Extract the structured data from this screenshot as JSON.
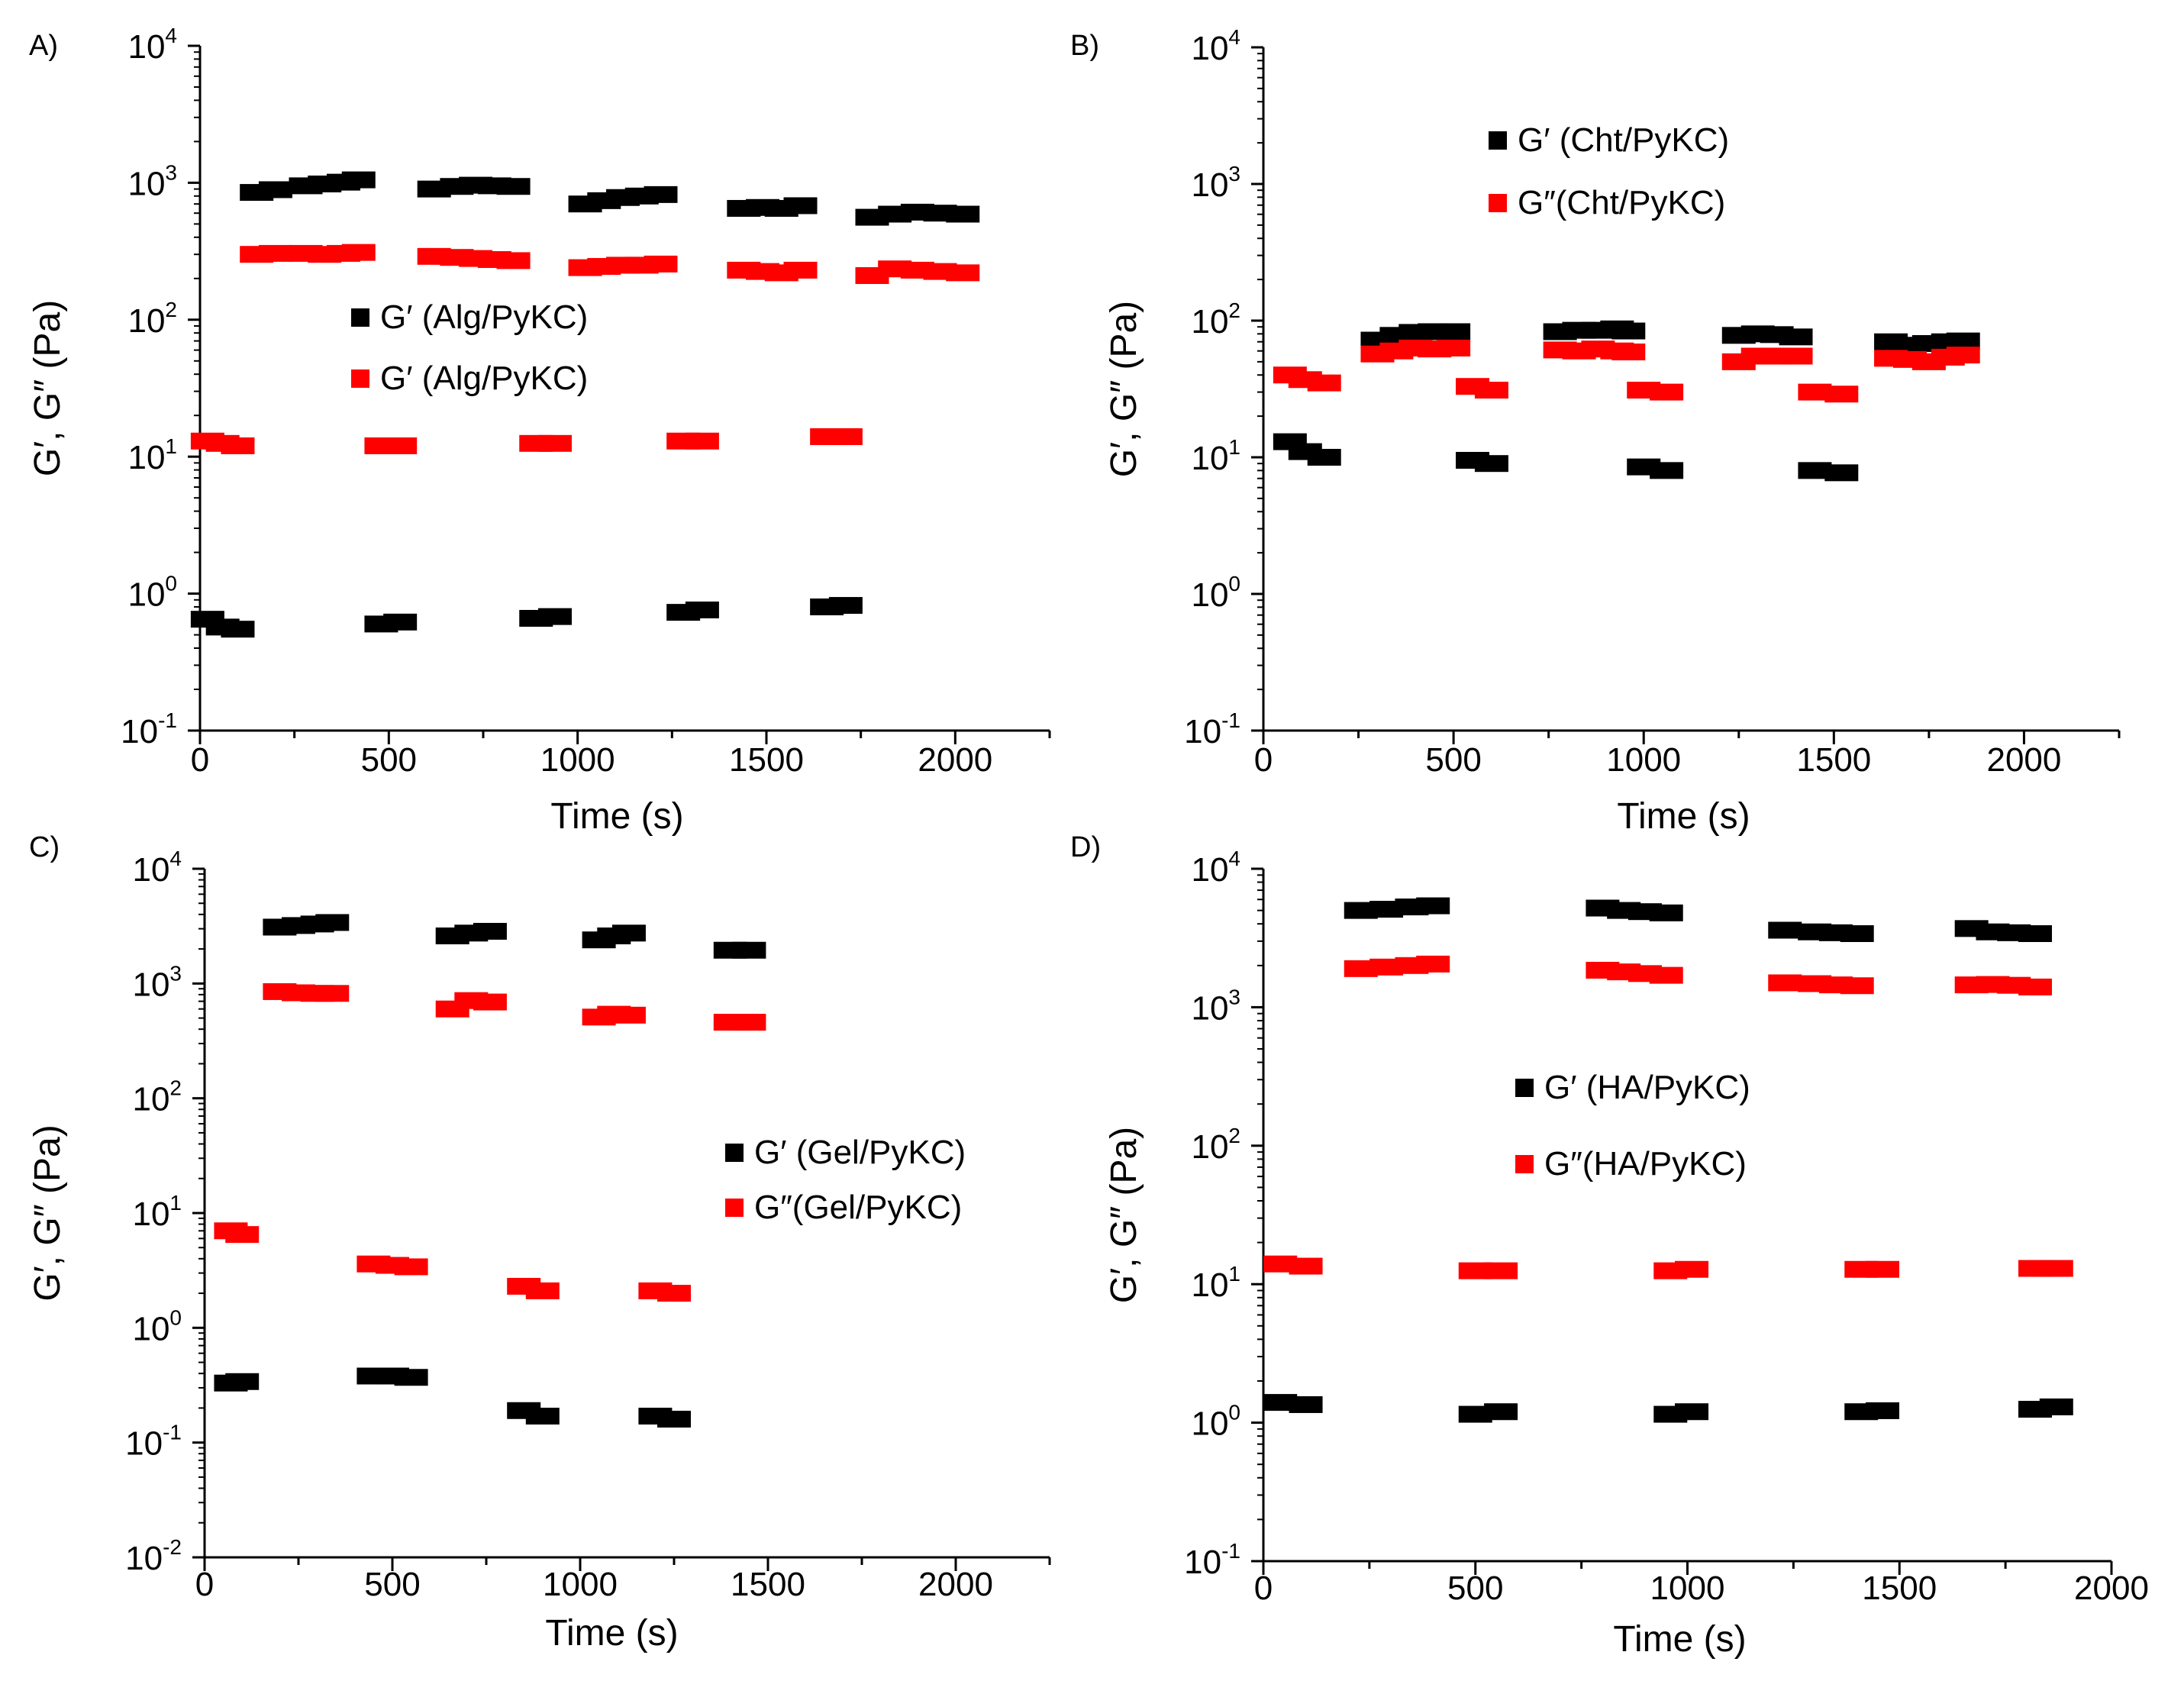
{
  "chart_data": [
    {
      "type": "scatter",
      "panel_label": "A)",
      "xlabel": "Time (s)",
      "ylabel": "G′, G″ (Pa)",
      "xlim": [
        0,
        2250
      ],
      "ylim_log10": [
        -1,
        4
      ],
      "x_ticks": [
        0,
        500,
        1000,
        1500,
        2000
      ],
      "x_tick_labels": [
        "0",
        "500",
        "1000",
        "1500",
        "2000"
      ],
      "y_tick_exponents": [
        "-1",
        "0",
        "1",
        "2",
        "3",
        "4"
      ],
      "legend": {
        "placement": "center-left",
        "entries": [
          "G′ (Alg/PyKC)",
          "G′ (Alg/PyKC)"
        ]
      },
      "series": [
        {
          "name": "G′ (Alg/PyKC) – high",
          "color": "#000000",
          "points": [
            [
              150,
              850
            ],
            [
              200,
              890
            ],
            [
              280,
              950
            ],
            [
              330,
              980
            ],
            [
              380,
              1010
            ],
            [
              420,
              1050
            ],
            [
              620,
              900
            ],
            [
              680,
              940
            ],
            [
              730,
              960
            ],
            [
              780,
              950
            ],
            [
              830,
              940
            ],
            [
              1020,
              700
            ],
            [
              1070,
              740
            ],
            [
              1120,
              780
            ],
            [
              1170,
              800
            ],
            [
              1220,
              820
            ],
            [
              1440,
              650
            ],
            [
              1490,
              660
            ],
            [
              1540,
              650
            ],
            [
              1590,
              680
            ],
            [
              1780,
              560
            ],
            [
              1840,
              590
            ],
            [
              1900,
              610
            ],
            [
              1960,
              600
            ],
            [
              2020,
              590
            ]
          ]
        },
        {
          "name": "G′ (Alg/PyKC) – high",
          "color": "#ff0000",
          "points": [
            [
              150,
              300
            ],
            [
              200,
              305
            ],
            [
              280,
              305
            ],
            [
              330,
              300
            ],
            [
              380,
              305
            ],
            [
              420,
              310
            ],
            [
              620,
              290
            ],
            [
              680,
              285
            ],
            [
              730,
              280
            ],
            [
              780,
              275
            ],
            [
              830,
              270
            ],
            [
              1020,
              240
            ],
            [
              1070,
              245
            ],
            [
              1120,
              250
            ],
            [
              1170,
              250
            ],
            [
              1220,
              255
            ],
            [
              1440,
              230
            ],
            [
              1490,
              225
            ],
            [
              1540,
              220
            ],
            [
              1590,
              230
            ],
            [
              1780,
              210
            ],
            [
              1840,
              235
            ],
            [
              1900,
              230
            ],
            [
              1960,
              225
            ],
            [
              2020,
              220
            ]
          ]
        },
        {
          "name": "G′ (Alg/PyKC) – low",
          "color": "#ff0000",
          "points": [
            [
              20,
              13
            ],
            [
              60,
              12.5
            ],
            [
              100,
              12
            ],
            [
              480,
              12
            ],
            [
              530,
              12
            ],
            [
              890,
              12.5
            ],
            [
              940,
              12.5
            ],
            [
              1280,
              13
            ],
            [
              1330,
              13
            ],
            [
              1660,
              14
            ],
            [
              1710,
              14
            ]
          ]
        },
        {
          "name": "G′ (Alg/PyKC) – low",
          "color": "#000000",
          "points": [
            [
              20,
              0.65
            ],
            [
              60,
              0.57
            ],
            [
              100,
              0.55
            ],
            [
              480,
              0.6
            ],
            [
              530,
              0.62
            ],
            [
              890,
              0.66
            ],
            [
              940,
              0.68
            ],
            [
              1280,
              0.73
            ],
            [
              1330,
              0.76
            ],
            [
              1660,
              0.8
            ],
            [
              1710,
              0.82
            ]
          ]
        }
      ]
    },
    {
      "type": "scatter",
      "panel_label": "B)",
      "xlabel": "Time (s)",
      "ylabel": "G′, G″ (Pa)",
      "xlim": [
        0,
        2250
      ],
      "ylim_log10": [
        -1,
        4
      ],
      "x_ticks": [
        0,
        500,
        1000,
        1500,
        2000
      ],
      "x_tick_labels": [
        "0",
        "500",
        "1000",
        "1500",
        "2000"
      ],
      "y_tick_exponents": [
        "-1",
        "0",
        "1",
        "2",
        "3",
        "4"
      ],
      "legend": {
        "placement": "top-center",
        "entries": [
          "G′ (Cht/PyKC)",
          "G″(Cht/PyKC)"
        ]
      },
      "series": [
        {
          "name": "G′ (Cht/PyKC) – high",
          "color": "#000000",
          "points": [
            [
              300,
              72
            ],
            [
              350,
              78
            ],
            [
              400,
              82
            ],
            [
              450,
              83
            ],
            [
              500,
              83
            ],
            [
              780,
              83
            ],
            [
              830,
              85
            ],
            [
              880,
              85
            ],
            [
              930,
              87
            ],
            [
              960,
              84
            ],
            [
              1250,
              78
            ],
            [
              1300,
              80
            ],
            [
              1350,
              79
            ],
            [
              1400,
              76
            ],
            [
              1650,
              70
            ],
            [
              1700,
              66
            ],
            [
              1750,
              68
            ],
            [
              1800,
              70
            ],
            [
              1840,
              71
            ]
          ]
        },
        {
          "name": "G″(Cht/PyKC) – high",
          "color": "#ff0000",
          "points": [
            [
              300,
              57
            ],
            [
              350,
              60
            ],
            [
              400,
              63
            ],
            [
              450,
              62
            ],
            [
              500,
              63
            ],
            [
              780,
              61
            ],
            [
              830,
              60
            ],
            [
              880,
              62
            ],
            [
              930,
              60
            ],
            [
              960,
              59
            ],
            [
              1250,
              50
            ],
            [
              1300,
              55
            ],
            [
              1350,
              55
            ],
            [
              1400,
              55
            ],
            [
              1650,
              53
            ],
            [
              1700,
              52
            ],
            [
              1750,
              50
            ],
            [
              1800,
              54
            ],
            [
              1840,
              56
            ]
          ]
        },
        {
          "name": "G″(Cht/PyKC) – low",
          "color": "#ff0000",
          "points": [
            [
              70,
              40
            ],
            [
              110,
              37
            ],
            [
              160,
              35
            ],
            [
              550,
              33
            ],
            [
              600,
              31
            ],
            [
              1000,
              31
            ],
            [
              1060,
              30
            ],
            [
              1450,
              30
            ],
            [
              1520,
              29
            ]
          ]
        },
        {
          "name": "G′ (Cht/PyKC) – low",
          "color": "#000000",
          "points": [
            [
              70,
              13
            ],
            [
              110,
              11
            ],
            [
              160,
              10
            ],
            [
              550,
              9.5
            ],
            [
              600,
              9
            ],
            [
              1000,
              8.5
            ],
            [
              1060,
              8
            ],
            [
              1450,
              8
            ],
            [
              1520,
              7.7
            ]
          ]
        }
      ]
    },
    {
      "type": "scatter",
      "panel_label": "C)",
      "xlabel": "Time (s)",
      "ylabel": "G′, G″ (Pa)",
      "xlim": [
        0,
        2250
      ],
      "ylim_log10": [
        -2,
        4
      ],
      "x_ticks": [
        0,
        500,
        1000,
        1500,
        2000
      ],
      "x_tick_labels": [
        "0",
        "500",
        "1000",
        "1500",
        "2000"
      ],
      "y_tick_exponents": [
        "-2",
        "-1",
        "0",
        "1",
        "2",
        "3",
        "4"
      ],
      "legend": {
        "placement": "center-right",
        "entries": [
          "G′ (Gel/PyKC)",
          "G″(Gel/PyKC)"
        ]
      },
      "series": [
        {
          "name": "G′ (Gel/PyKC) – high",
          "color": "#000000",
          "points": [
            [
              200,
              3100
            ],
            [
              250,
              3200
            ],
            [
              300,
              3300
            ],
            [
              340,
              3400
            ],
            [
              660,
              2600
            ],
            [
              710,
              2750
            ],
            [
              760,
              2850
            ],
            [
              1050,
              2400
            ],
            [
              1090,
              2600
            ],
            [
              1130,
              2750
            ],
            [
              1400,
              1950
            ],
            [
              1450,
              1950
            ]
          ]
        },
        {
          "name": "G″(Gel/PyKC) – high",
          "color": "#ff0000",
          "points": [
            [
              200,
              850
            ],
            [
              250,
              830
            ],
            [
              300,
              820
            ],
            [
              340,
              820
            ],
            [
              660,
              600
            ],
            [
              710,
              710
            ],
            [
              760,
              690
            ],
            [
              1050,
              510
            ],
            [
              1090,
              540
            ],
            [
              1130,
              530
            ],
            [
              1400,
              460
            ],
            [
              1450,
              460
            ]
          ]
        },
        {
          "name": "G″(Gel/PyKC) – low",
          "color": "#ff0000",
          "points": [
            [
              70,
              7
            ],
            [
              100,
              6.5
            ],
            [
              450,
              3.6
            ],
            [
              500,
              3.5
            ],
            [
              550,
              3.4
            ],
            [
              850,
              2.3
            ],
            [
              900,
              2.1
            ],
            [
              1200,
              2.1
            ],
            [
              1250,
              2.0
            ]
          ]
        },
        {
          "name": "G′ (Gel/PyKC) – low",
          "color": "#000000",
          "points": [
            [
              70,
              0.33
            ],
            [
              100,
              0.34
            ],
            [
              450,
              0.38
            ],
            [
              500,
              0.38
            ],
            [
              550,
              0.37
            ],
            [
              850,
              0.19
            ],
            [
              900,
              0.17
            ],
            [
              1200,
              0.17
            ],
            [
              1250,
              0.16
            ]
          ]
        }
      ]
    },
    {
      "type": "scatter",
      "panel_label": "D)",
      "xlabel": "Time (s)",
      "ylabel": "G′, G″ (Pa)",
      "xlim": [
        0,
        2000
      ],
      "ylim_log10": [
        -1,
        4
      ],
      "x_ticks": [
        0,
        500,
        1000,
        1500,
        2000
      ],
      "x_tick_labels": [
        "0",
        "500",
        "1000",
        "1500",
        "2000"
      ],
      "y_tick_exponents": [
        "-1",
        "0",
        "1",
        "2",
        "3",
        "4"
      ],
      "legend": {
        "placement": "center",
        "entries": [
          "G′ (HA/PyKC)",
          "G″(HA/PyKC)"
        ]
      },
      "series": [
        {
          "name": "G′ (HA/PyKC) – high",
          "color": "#000000",
          "points": [
            [
              230,
              5000
            ],
            [
              290,
              5100
            ],
            [
              350,
              5300
            ],
            [
              400,
              5400
            ],
            [
              800,
              5200
            ],
            [
              850,
              5000
            ],
            [
              900,
              4900
            ],
            [
              950,
              4800
            ],
            [
              1230,
              3600
            ],
            [
              1300,
              3500
            ],
            [
              1350,
              3450
            ],
            [
              1400,
              3400
            ],
            [
              1670,
              3700
            ],
            [
              1720,
              3500
            ],
            [
              1770,
              3450
            ],
            [
              1820,
              3400
            ]
          ]
        },
        {
          "name": "G″(HA/PyKC) – high",
          "color": "#ff0000",
          "points": [
            [
              230,
              1900
            ],
            [
              290,
              1950
            ],
            [
              350,
              2000
            ],
            [
              400,
              2050
            ],
            [
              800,
              1850
            ],
            [
              850,
              1800
            ],
            [
              900,
              1750
            ],
            [
              950,
              1700
            ],
            [
              1230,
              1500
            ],
            [
              1300,
              1480
            ],
            [
              1350,
              1450
            ],
            [
              1400,
              1430
            ],
            [
              1670,
              1450
            ],
            [
              1720,
              1460
            ],
            [
              1770,
              1440
            ],
            [
              1820,
              1400
            ]
          ]
        },
        {
          "name": "G″(HA/PyKC) – low",
          "color": "#ff0000",
          "points": [
            [
              40,
              14
            ],
            [
              100,
              13.5
            ],
            [
              500,
              12.5
            ],
            [
              560,
              12.5
            ],
            [
              960,
              12.5
            ],
            [
              1010,
              12.8
            ],
            [
              1410,
              12.8
            ],
            [
              1460,
              12.8
            ],
            [
              1820,
              13
            ],
            [
              1870,
              13
            ]
          ]
        },
        {
          "name": "G′ (HA/PyKC) – low",
          "color": "#000000",
          "points": [
            [
              40,
              1.4
            ],
            [
              100,
              1.35
            ],
            [
              500,
              1.15
            ],
            [
              560,
              1.2
            ],
            [
              960,
              1.15
            ],
            [
              1010,
              1.2
            ],
            [
              1410,
              1.2
            ],
            [
              1460,
              1.22
            ],
            [
              1820,
              1.25
            ],
            [
              1870,
              1.3
            ]
          ]
        }
      ]
    }
  ]
}
